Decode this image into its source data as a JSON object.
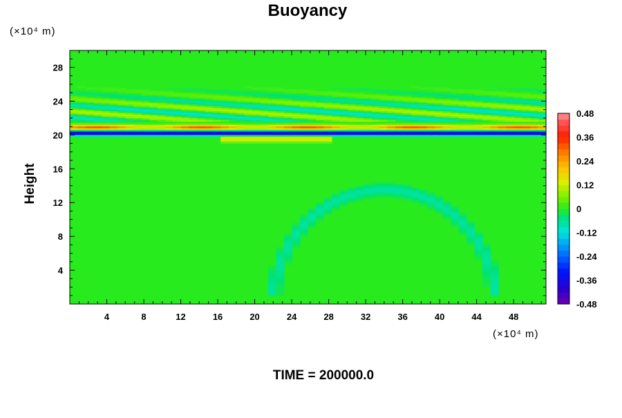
{
  "chart_data": {
    "type": "heatmap",
    "title": "Buoyancy",
    "xlabel": "",
    "ylabel": "Height",
    "x_unit": "(×10⁴ m)",
    "y_unit": "(×10⁴ m)",
    "xlim": [
      0,
      51.5
    ],
    "ylim": [
      0,
      30
    ],
    "x_ticks": [
      4,
      8,
      12,
      16,
      20,
      24,
      28,
      32,
      36,
      40,
      44,
      48
    ],
    "x_tick_labels": [
      "4",
      "8",
      "12",
      "16",
      "20",
      "24",
      "28",
      "32",
      "36",
      "40",
      "44",
      "48"
    ],
    "y_ticks": [
      4,
      8,
      12,
      16,
      20,
      24,
      28
    ],
    "y_tick_labels": [
      "4",
      "8",
      "12",
      "16",
      "20",
      "24",
      "28"
    ],
    "grid": false,
    "colorbar": {
      "min": -0.48,
      "max": 0.48,
      "step": 0.03,
      "ticks": [
        0.48,
        0.36,
        0.24,
        0.12,
        0,
        -0.12,
        -0.24,
        -0.36,
        -0.48
      ],
      "tick_labels": [
        "0.48",
        "0.36",
        "0.24",
        "0.12",
        "0",
        "-0.12",
        "-0.24",
        "-0.36",
        "-0.48"
      ]
    },
    "field_description": {
      "background_value": 0.0,
      "strong_layer": {
        "height": 20.2,
        "value": -0.45
      },
      "positive_layer": {
        "height": 20.9,
        "value": 0.33
      },
      "upper_oscillations": {
        "height_range": [
          21.5,
          27
        ],
        "amplitude": 0.1
      },
      "lower_disturbance": {
        "height": 19.5,
        "x_range": [
          16,
          28
        ],
        "value": 0.15
      }
    },
    "footer": "TIME = 200000.0"
  }
}
